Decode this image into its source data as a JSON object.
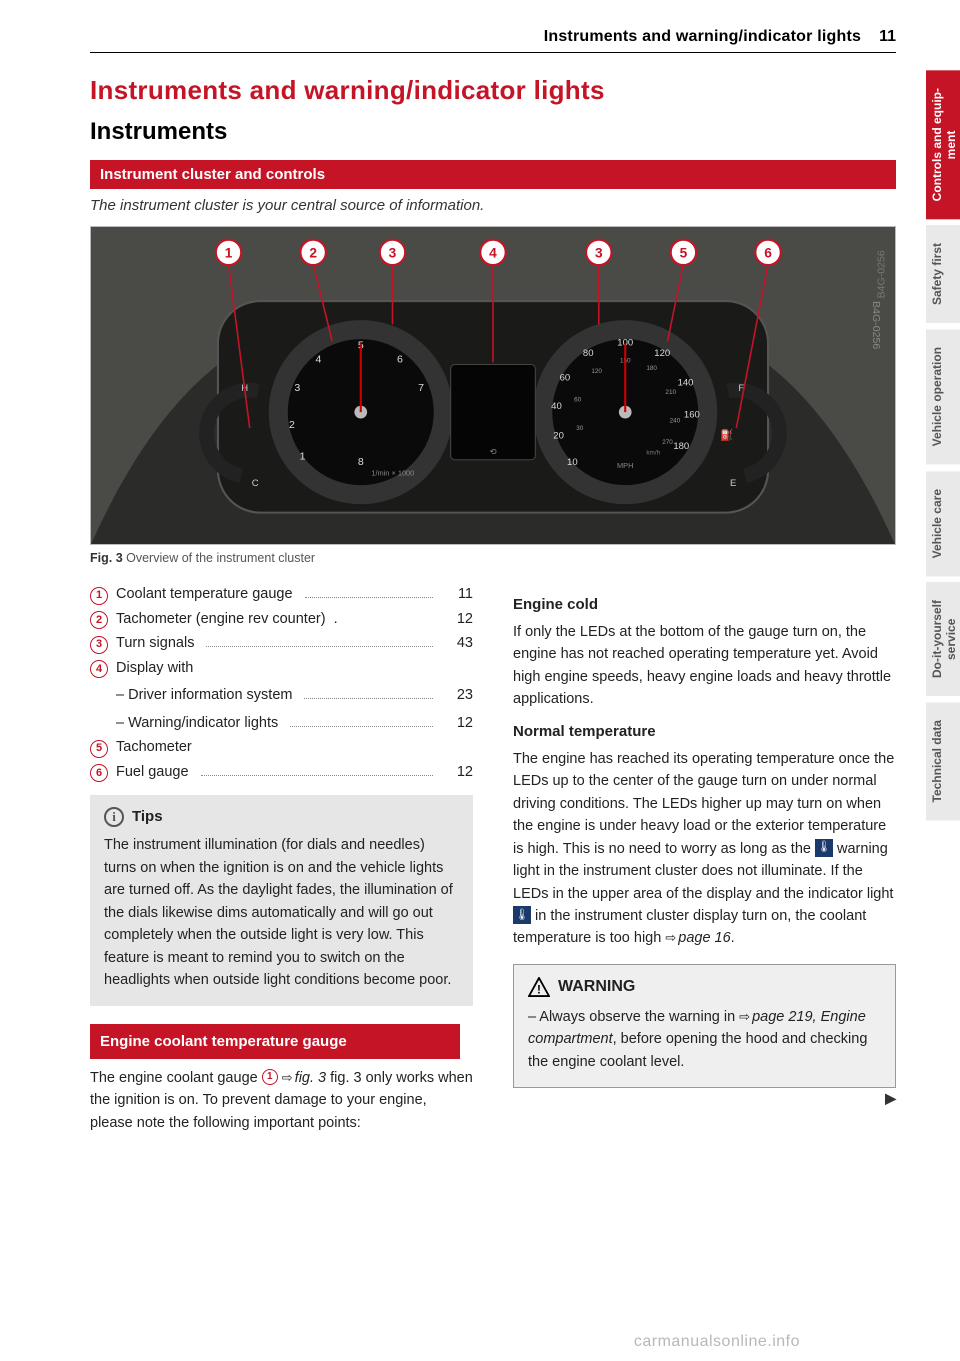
{
  "header": {
    "title": "Instruments and warning/indicator lights",
    "page": "11"
  },
  "chapter_title": "Instruments and warning/indicator lights",
  "section_title": "Instruments",
  "bar1": "Instrument cluster and controls",
  "subtitle1": "The instrument cluster is your central source of information.",
  "figure": {
    "code": "B4G-0256",
    "caption_label": "Fig. 3",
    "caption_text": " Overview of the instrument cluster",
    "callouts": [
      "1",
      "2",
      "3",
      "4",
      "3",
      "5",
      "6"
    ]
  },
  "toc": [
    {
      "n": "1",
      "label": "Coolant temperature gauge",
      "dots": true,
      "page": "11"
    },
    {
      "n": "2",
      "label": "Tachometer (engine rev counter)",
      "dots": false,
      "page": "12"
    },
    {
      "n": "3",
      "label": "Turn signals",
      "dots": true,
      "page": "43"
    },
    {
      "n": "4",
      "label": "Display with",
      "dots": false,
      "page": ""
    },
    {
      "n": "",
      "label": "– Driver information system",
      "dots": true,
      "page": "23"
    },
    {
      "n": "",
      "label": "– Warning/indicator lights",
      "dots": true,
      "page": "12"
    },
    {
      "n": "5",
      "label": "Tachometer",
      "dots": false,
      "page": ""
    },
    {
      "n": "6",
      "label": "Fuel gauge",
      "dots": true,
      "page": "12"
    }
  ],
  "tips": {
    "head": "Tips",
    "body": "The instrument illumination (for dials and needles) turns on when the ignition is on and the vehicle lights are turned off. As the daylight fades, the illumination of the dials likewise dims automatically and will go out completely when the outside light is very low. This feature is meant to remind you to switch on the headlights when outside light conditions become poor."
  },
  "bar2": "Engine coolant temperature gauge",
  "para_gauge_pre": "The engine coolant gauge ",
  "para_gauge_mid": " fig. 3 only works when the ignition is on. To prevent damage to your engine, please note the following important points:",
  "right": {
    "h1": "Engine cold",
    "p1": "If only the LEDs at the bottom of the gauge turn on, the engine has not reached operating temperature yet. Avoid high engine speeds, heavy engine loads and heavy throttle applications.",
    "h2": "Normal temperature",
    "p2a": "The engine has reached its operating temperature once the LEDs up to the center of the gauge turn on under normal driving conditions. The LEDs higher up may turn on when the engine is under heavy load or the exterior temperature is high. This is no need to worry as long as the ",
    "p2b": " warning light in the instrument cluster does not illuminate. If the LEDs in the upper area of the display and the indicator light ",
    "p2c": " in the instrument cluster display turn on, the coolant temperature is too high ",
    "p2_ref_pre": "",
    "p2_ref": "page 16",
    "period": "."
  },
  "warning": {
    "head": "WARNING",
    "line": "– Always observe the warning in ",
    "ref": "page 219, Engine compartment",
    "tail": ", before opening the hood and checking the engine coolant level."
  },
  "tabs": [
    {
      "label": "Controls and equip-\nment",
      "active": true
    },
    {
      "label": "Safety first",
      "active": false
    },
    {
      "label": "Vehicle operation",
      "active": false
    },
    {
      "label": "Vehicle care",
      "active": false
    },
    {
      "label": "Do-it-yourself\nservice",
      "active": false
    },
    {
      "label": "Technical data",
      "active": false
    }
  ],
  "watermark": "carmanualsonline.info",
  "colors": {
    "accent": "#c41426",
    "tab_bg": "#e9e9ea",
    "tips_bg": "#e6e6e7",
    "temp_icon_bg": "#1a3a6b"
  }
}
